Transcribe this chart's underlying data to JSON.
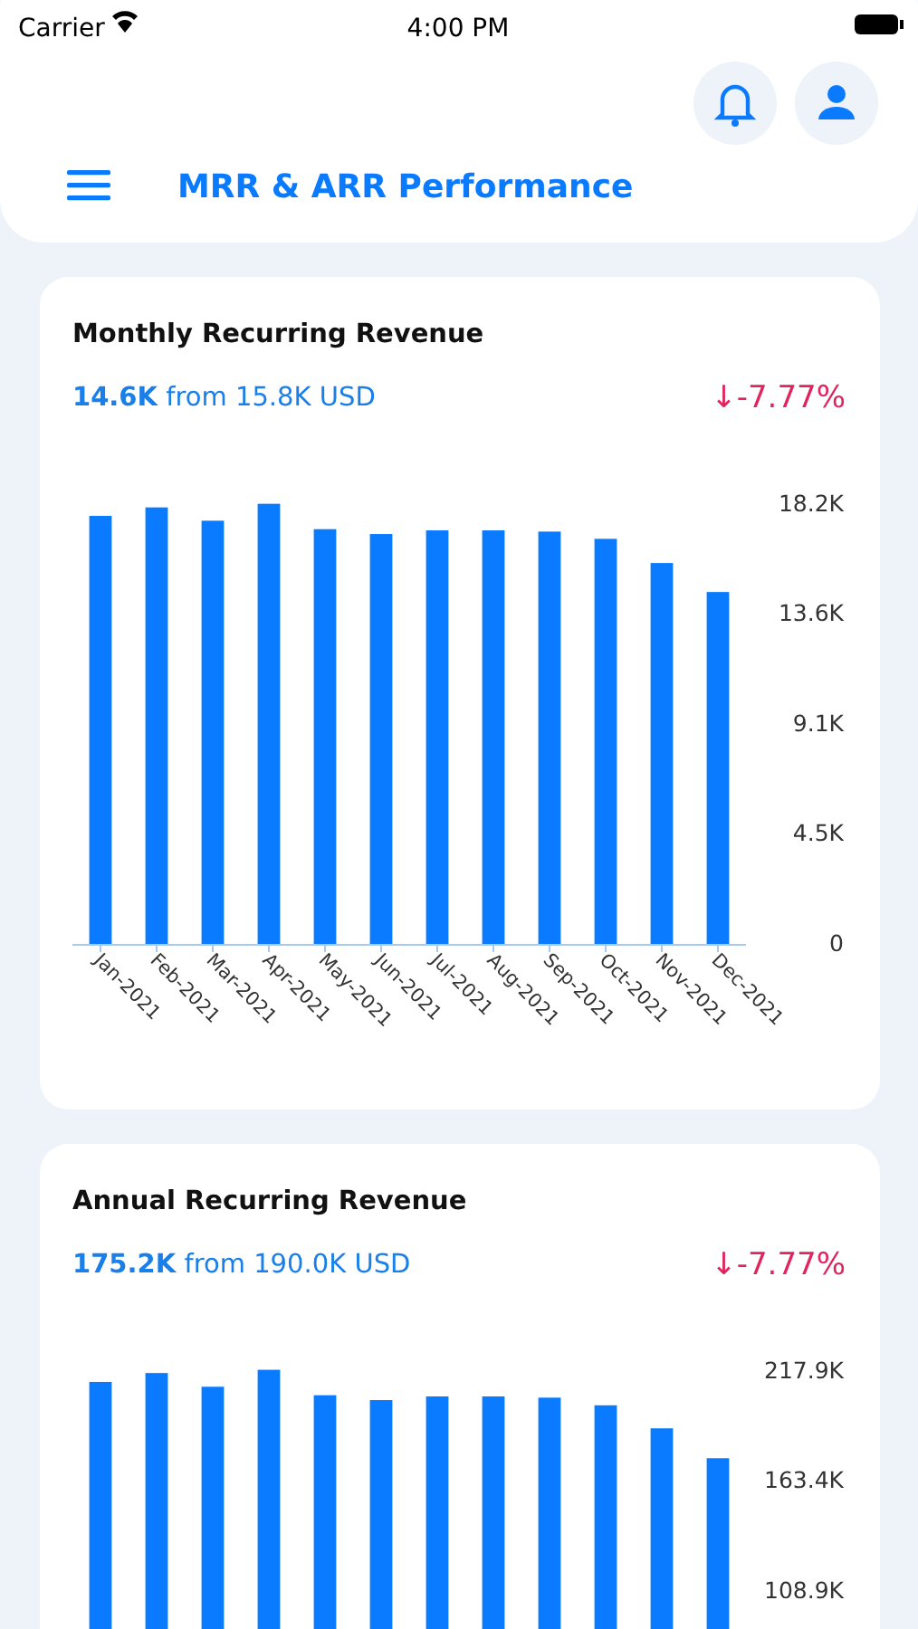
{
  "chart_data": [
    {
      "type": "other",
      "title": "MRR & ARR Performance",
      "annotations": [
        "Carrier",
        "4:00 PM"
      ]
    },
    {
      "type": "bar",
      "title": "Monthly Recurring Revenue",
      "subtitle": "14.6K from 15.8K USD",
      "annotations": [
        "↓-7.77%"
      ],
      "categories": [
        "Jan-2021",
        "Feb-2021",
        "Mar-2021",
        "Apr-2021",
        "May-2021",
        "Jun-2021",
        "Jul-2021",
        "Aug-2021",
        "Sep-2021",
        "Oct-2021",
        "Nov-2021",
        "Dec-2021"
      ],
      "values": [
        17750,
        18100,
        17550,
        18250,
        17200,
        17000,
        17150,
        17150,
        17100,
        16800,
        15800,
        14600
      ],
      "color": "#0a7bff",
      "ylim": [
        0,
        18500
      ],
      "yticks": [
        0,
        {
          "value": 4550,
          "label": "4.5K"
        },
        {
          "value": 9100,
          "label": "9.1K"
        },
        {
          "value": 13650,
          "label": "13.6K"
        },
        {
          "value": 18200,
          "label": "18.2K"
        }
      ],
      "grid": false
    },
    {
      "type": "bar",
      "title": "Annual Recurring Revenue",
      "subtitle": "175.2K from 190.0K USD",
      "annotations": [
        "↓-7.77%"
      ],
      "categories": [
        null,
        null,
        null,
        null,
        null,
        null,
        null,
        null,
        null,
        null,
        null,
        null
      ],
      "values": [
        213000,
        217400,
        210600,
        219000,
        206400,
        204000,
        205800,
        205800,
        205200,
        201400,
        190000,
        175200
      ],
      "color": "#0a7bff",
      "ylim": [
        0,
        221500
      ],
      "yticks": [
        {
          "value": 108950,
          "label": "108.9K"
        },
        {
          "value": 163425,
          "label": "163.4K"
        },
        {
          "value": 217900,
          "label": "217.9K"
        }
      ],
      "grid": false
    }
  ]
}
